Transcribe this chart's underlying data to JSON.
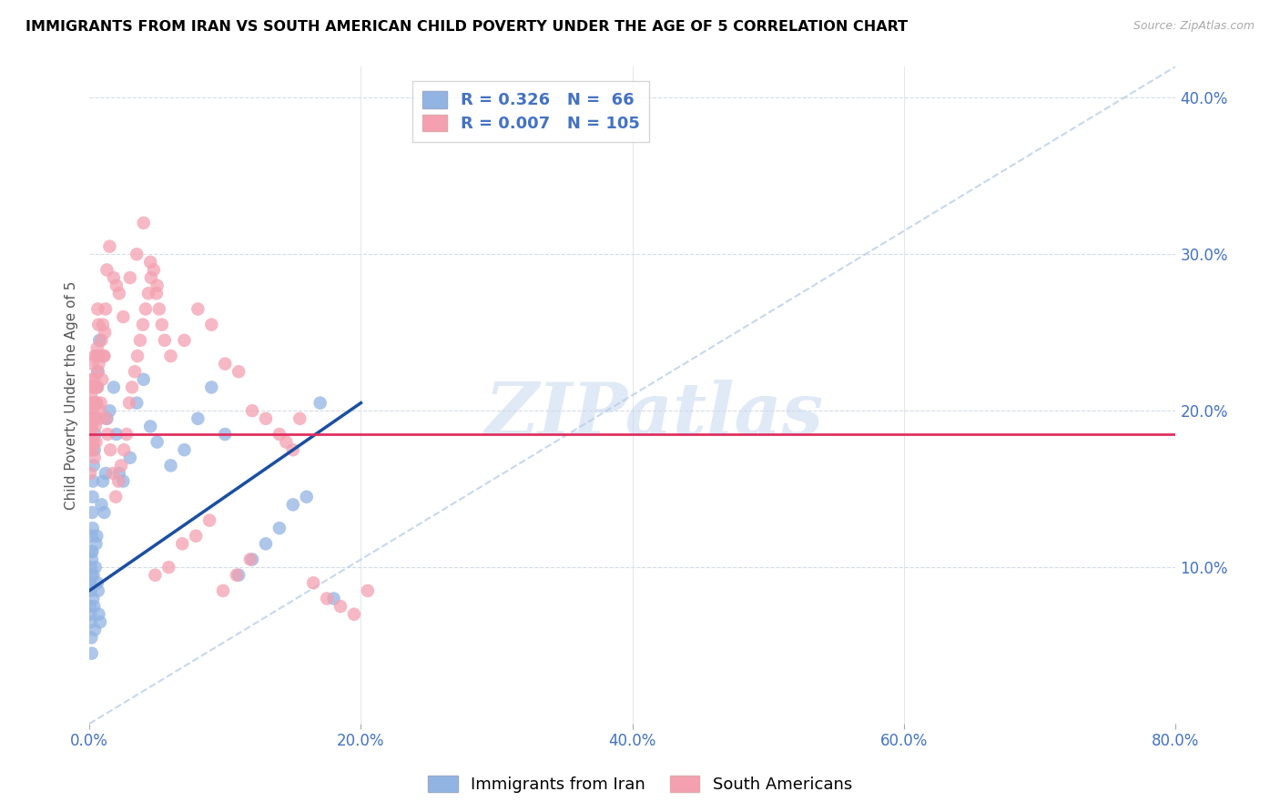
{
  "title": "IMMIGRANTS FROM IRAN VS SOUTH AMERICAN CHILD POVERTY UNDER THE AGE OF 5 CORRELATION CHART",
  "source": "Source: ZipAtlas.com",
  "ylabel": "Child Poverty Under the Age of 5",
  "xlim": [
    0,
    80
  ],
  "ylim": [
    0,
    42
  ],
  "iran_R": "0.326",
  "iran_N": "66",
  "south_R": "0.007",
  "south_N": "105",
  "iran_color": "#92b4e3",
  "south_color": "#f4a0b0",
  "iran_line_color": "#1a4fa0",
  "south_line_color": "#e03060",
  "ref_line_color": "#b8cfe8",
  "grid_color": "#d4dce8",
  "watermark": "ZIPatlas",
  "iran_x": [
    0.05,
    0.08,
    0.1,
    0.12,
    0.15,
    0.18,
    0.2,
    0.22,
    0.25,
    0.28,
    0.3,
    0.35,
    0.4,
    0.45,
    0.5,
    0.55,
    0.6,
    0.65,
    0.7,
    0.8,
    0.9,
    1.0,
    1.1,
    1.2,
    1.3,
    1.5,
    1.8,
    2.0,
    2.2,
    2.5,
    3.0,
    3.5,
    4.0,
    4.5,
    5.0,
    6.0,
    7.0,
    8.0,
    9.0,
    10.0,
    11.0,
    12.0,
    13.0,
    14.0,
    15.0,
    16.0,
    17.0,
    18.0,
    0.06,
    0.09,
    0.11,
    0.14,
    0.17,
    0.19,
    0.21,
    0.24,
    0.27,
    0.32,
    0.38,
    0.42,
    0.48,
    0.52,
    0.58,
    0.62,
    0.68,
    0.75
  ],
  "iran_y": [
    9.0,
    7.0,
    8.5,
    6.5,
    5.5,
    4.5,
    10.5,
    11.0,
    12.5,
    8.0,
    9.5,
    7.5,
    6.0,
    10.0,
    11.5,
    12.0,
    9.0,
    8.5,
    7.0,
    6.5,
    14.0,
    15.5,
    13.5,
    16.0,
    19.5,
    20.0,
    21.5,
    18.5,
    16.0,
    15.5,
    17.0,
    20.5,
    22.0,
    19.0,
    18.0,
    16.5,
    17.5,
    19.5,
    21.5,
    18.5,
    9.5,
    10.5,
    11.5,
    12.5,
    14.0,
    14.5,
    20.5,
    8.0,
    7.5,
    9.0,
    10.0,
    9.5,
    11.0,
    12.0,
    13.5,
    14.5,
    15.5,
    16.5,
    17.5,
    18.5,
    19.5,
    20.5,
    21.5,
    22.5,
    23.5,
    24.5
  ],
  "south_x": [
    0.05,
    0.08,
    0.1,
    0.12,
    0.15,
    0.18,
    0.2,
    0.22,
    0.25,
    0.28,
    0.3,
    0.35,
    0.4,
    0.45,
    0.5,
    0.55,
    0.6,
    0.65,
    0.7,
    0.8,
    0.9,
    1.0,
    1.1,
    1.2,
    1.3,
    1.5,
    1.8,
    2.0,
    2.2,
    2.5,
    3.0,
    3.5,
    4.0,
    4.5,
    5.0,
    6.0,
    7.0,
    8.0,
    9.0,
    10.0,
    11.0,
    12.0,
    13.0,
    14.0,
    15.0,
    0.06,
    0.09,
    0.11,
    0.14,
    0.17,
    0.19,
    0.21,
    0.24,
    0.27,
    0.32,
    0.38,
    0.42,
    0.48,
    0.52,
    0.58,
    0.62,
    0.68,
    0.75,
    0.85,
    0.95,
    1.05,
    1.15,
    1.25,
    1.35,
    1.55,
    1.75,
    1.95,
    2.15,
    2.35,
    2.55,
    2.75,
    2.95,
    3.15,
    3.35,
    3.55,
    3.75,
    3.95,
    4.15,
    4.35,
    4.55,
    4.75,
    4.95,
    5.15,
    5.35,
    5.55,
    14.5,
    15.5,
    16.5,
    17.5,
    18.5,
    19.5,
    20.5,
    4.85,
    5.85,
    6.85,
    7.85,
    8.85,
    9.85,
    10.85,
    11.85
  ],
  "south_y": [
    20.0,
    19.0,
    18.5,
    21.0,
    20.5,
    22.0,
    19.0,
    18.0,
    17.5,
    20.0,
    21.5,
    22.0,
    23.5,
    19.0,
    18.0,
    20.5,
    21.5,
    22.5,
    23.0,
    20.0,
    24.5,
    25.5,
    23.5,
    26.5,
    29.0,
    30.5,
    28.5,
    28.0,
    27.5,
    26.0,
    28.5,
    30.0,
    32.0,
    29.5,
    28.0,
    23.5,
    24.5,
    26.5,
    25.5,
    23.0,
    22.5,
    20.0,
    19.5,
    18.5,
    17.5,
    16.0,
    17.5,
    18.5,
    19.5,
    20.5,
    19.5,
    21.5,
    23.0,
    19.5,
    18.0,
    17.0,
    20.5,
    21.5,
    23.5,
    24.0,
    26.5,
    25.5,
    19.5,
    20.5,
    22.0,
    23.5,
    25.0,
    19.5,
    18.5,
    17.5,
    16.0,
    14.5,
    15.5,
    16.5,
    17.5,
    18.5,
    20.5,
    21.5,
    22.5,
    23.5,
    24.5,
    25.5,
    26.5,
    27.5,
    28.5,
    29.0,
    27.5,
    26.5,
    25.5,
    24.5,
    18.0,
    19.5,
    9.0,
    8.0,
    7.5,
    7.0,
    8.5,
    9.5,
    10.0,
    11.5,
    12.0,
    13.0,
    8.5,
    9.5,
    10.5
  ],
  "iran_trend_x0": 0,
  "iran_trend_y0": 8.5,
  "iran_trend_x1": 20,
  "iran_trend_y1": 20.5,
  "south_trend_y": 18.5
}
